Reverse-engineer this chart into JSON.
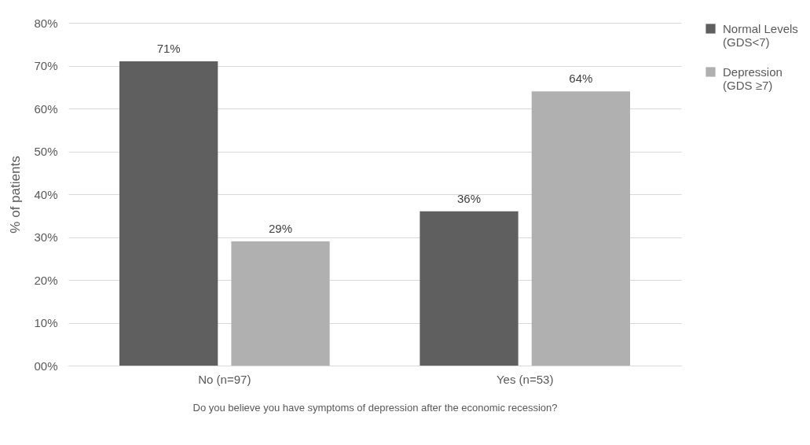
{
  "chart_data": {
    "type": "bar",
    "xlabel": "Do you believe you have symptoms of depression after the economic recession?",
    "ylabel": "% of patients",
    "categories": [
      "No (n=97)",
      "Yes (n=53)"
    ],
    "series": [
      {
        "name": "Normal Levels (GDS<7)",
        "color": "#5f5f5f",
        "values": [
          71,
          36
        ],
        "value_labels": [
          "71%",
          "36%"
        ]
      },
      {
        "name": "Depression (GDS ≥7)",
        "color": "#b0b0b0",
        "values": [
          29,
          64
        ],
        "value_labels": [
          "29%",
          "64%"
        ]
      }
    ],
    "ylim": [
      0,
      80
    ],
    "yticks": [
      {
        "value": 0,
        "label": "00%"
      },
      {
        "value": 10,
        "label": "10%"
      },
      {
        "value": 20,
        "label": "20%"
      },
      {
        "value": 30,
        "label": "30%"
      },
      {
        "value": 40,
        "label": "40%"
      },
      {
        "value": 50,
        "label": "50%"
      },
      {
        "value": 60,
        "label": "60%"
      },
      {
        "value": 70,
        "label": "70%"
      },
      {
        "value": 80,
        "label": "80%"
      }
    ],
    "grid": "y",
    "legend": "right"
  }
}
